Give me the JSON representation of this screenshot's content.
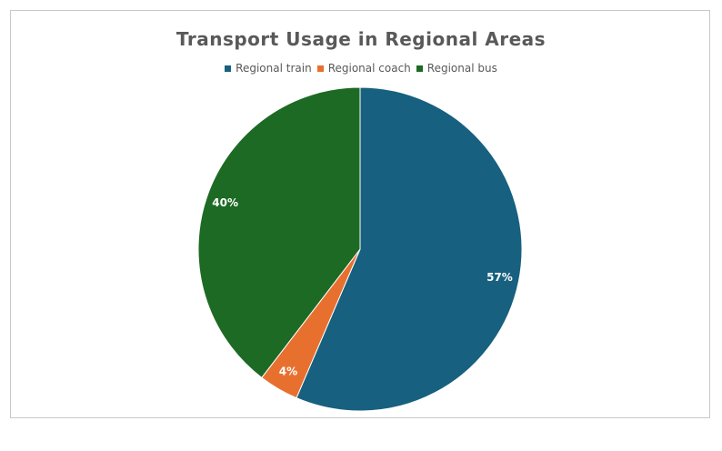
{
  "chart_data": {
    "type": "pie",
    "title": "Transport Usage in Regional Areas",
    "legend_position": "top",
    "slices": [
      {
        "name": "Regional train",
        "value": 57,
        "label": "57%",
        "color": "#17607f"
      },
      {
        "name": "Regional coach",
        "value": 4,
        "label": "4%",
        "color": "#e8702f"
      },
      {
        "name": "Regional bus",
        "value": 40,
        "label": "40%",
        "color": "#1d6a24"
      }
    ]
  }
}
